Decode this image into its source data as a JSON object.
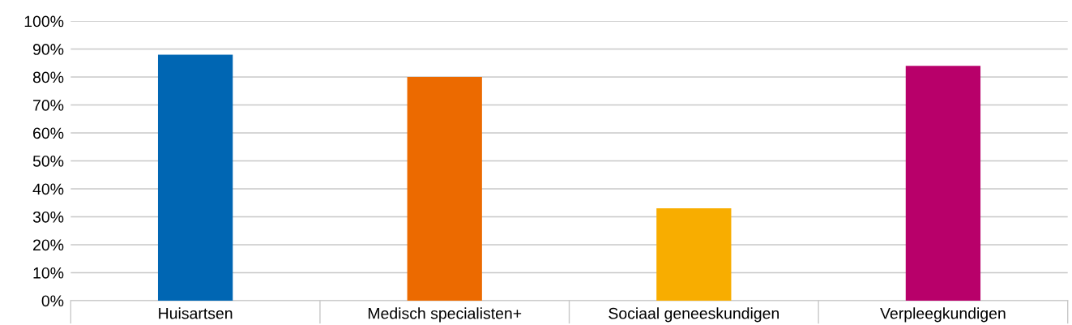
{
  "chart_data": {
    "type": "bar",
    "categories": [
      "Huisartsen",
      "Medisch specialisten+",
      "Sociaal geneeskundigen",
      "Verpleegkundigen"
    ],
    "values": [
      88,
      80,
      33,
      84
    ],
    "colors": [
      "#0066b3",
      "#ec6a00",
      "#f8ad00",
      "#b8006a"
    ],
    "ylim": [
      0,
      100
    ],
    "yticks": [
      {
        "value": 0,
        "label": "0%"
      },
      {
        "value": 10,
        "label": "10%"
      },
      {
        "value": 20,
        "label": "20%"
      },
      {
        "value": 30,
        "label": "30%"
      },
      {
        "value": 40,
        "label": "40%"
      },
      {
        "value": 50,
        "label": "50%"
      },
      {
        "value": 60,
        "label": "60%"
      },
      {
        "value": 70,
        "label": "70%"
      },
      {
        "value": 80,
        "label": "80%"
      },
      {
        "value": 90,
        "label": "90%"
      },
      {
        "value": 100,
        "label": "100%"
      }
    ],
    "grid": "y",
    "legend": false
  }
}
